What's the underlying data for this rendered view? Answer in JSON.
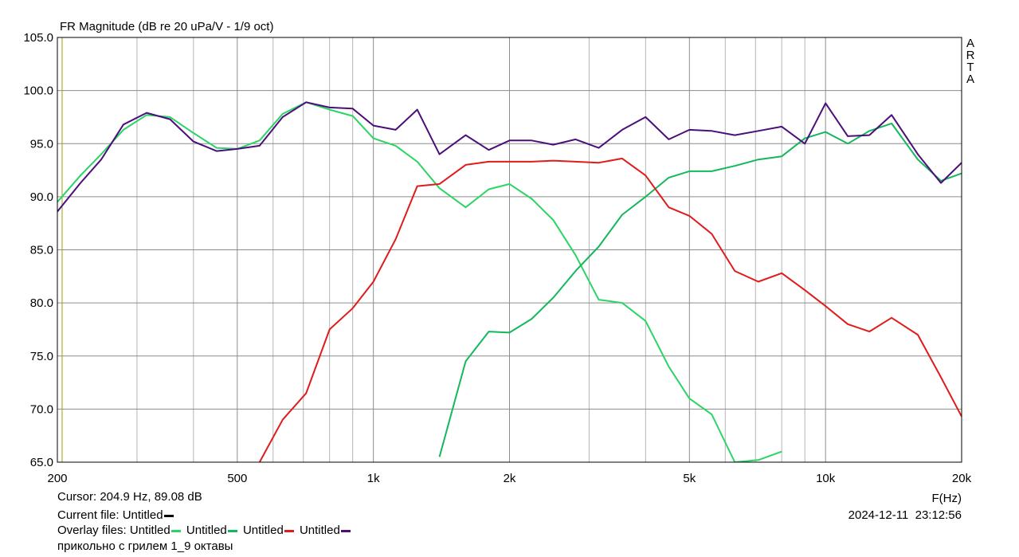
{
  "chart_data": {
    "type": "line",
    "title": "FR Magnitude (dB re 20 uPa/V - 1/9 oct)",
    "x_label": "F(Hz)",
    "brand": "ARTA",
    "log_x": true,
    "grid": true,
    "xlim": [
      200,
      20000
    ],
    "ylim": [
      65,
      105
    ],
    "xticks": [
      200,
      500,
      {
        "value": 1000,
        "label": "1k"
      },
      {
        "value": 2000,
        "label": "2k"
      },
      {
        "value": 5000,
        "label": "5k"
      },
      {
        "value": 10000,
        "label": "10k"
      },
      {
        "value": 20000,
        "label": "20k"
      }
    ],
    "xminor": [
      300,
      400,
      600,
      700,
      800,
      900,
      3000,
      4000,
      6000,
      7000,
      8000,
      9000
    ],
    "yticks": [
      {
        "value": 65,
        "label": "65.0"
      },
      {
        "value": 70,
        "label": "70.0"
      },
      {
        "value": 75,
        "label": "75.0"
      },
      {
        "value": 80,
        "label": "80.0"
      },
      {
        "value": 85,
        "label": "85.0"
      },
      {
        "value": 90,
        "label": "90.0"
      },
      {
        "value": 95,
        "label": "95.0"
      },
      {
        "value": 100,
        "label": "100.0"
      },
      {
        "value": 105,
        "label": "105.0"
      }
    ],
    "cursor": {
      "label": "Cursor: 204.9 Hz, 89.08 dB",
      "x": 204.9,
      "color": "#a0a000"
    },
    "current_file": {
      "label": "Current file:",
      "name": "Untitled",
      "color": "#000000"
    },
    "legend_title": "Overlay files:",
    "timestamp": "2024-12-11  23:12:56",
    "note": "прикольно с грилем 1_9 октавы",
    "x": [
      200,
      225,
      250,
      280,
      315,
      355,
      400,
      450,
      500,
      560,
      630,
      710,
      800,
      900,
      1000,
      1120,
      1250,
      1400,
      1600,
      1800,
      2000,
      2240,
      2500,
      2800,
      3150,
      3550,
      4000,
      4500,
      5000,
      5600,
      6300,
      7100,
      8000,
      9000,
      10000,
      11200,
      12500,
      14000,
      16000,
      18000,
      20000
    ],
    "series": [
      {
        "name": "Untitled",
        "color": "#2bd466",
        "values": [
          89.5,
          92,
          94,
          96.3,
          97.7,
          97.5,
          96,
          94.6,
          94.5,
          95.3,
          97.8,
          98.9,
          98.2,
          97.6,
          95.5,
          94.8,
          93.3,
          90.8,
          89,
          90.7,
          91.2,
          89.8,
          87.8,
          84.5,
          80.3,
          80,
          78.3,
          74,
          71,
          69.5,
          65,
          65.2,
          66,
          null,
          null,
          null,
          null,
          null,
          null,
          null,
          null
        ]
      },
      {
        "name": "Untitled",
        "color": "#14b85c",
        "values": [
          null,
          null,
          null,
          null,
          null,
          null,
          null,
          null,
          null,
          null,
          null,
          null,
          null,
          null,
          null,
          null,
          null,
          65.5,
          74.5,
          77.3,
          77.2,
          78.5,
          80.5,
          83,
          85.3,
          88.3,
          90,
          91.8,
          92.4,
          92.4,
          92.9,
          93.5,
          93.8,
          95.5,
          96.1,
          95,
          96.2,
          96.9,
          93.5,
          91.5,
          92.2
        ]
      },
      {
        "name": "Untitled",
        "color": "#e01b1b",
        "values": [
          null,
          null,
          null,
          null,
          null,
          null,
          null,
          null,
          null,
          65,
          69,
          71.5,
          77.5,
          79.5,
          82,
          86,
          91,
          91.2,
          93,
          93.3,
          93.3,
          93.3,
          93.4,
          93.3,
          93.2,
          93.6,
          92,
          89,
          88.2,
          86.5,
          83,
          82,
          82.8,
          81.2,
          79.7,
          78,
          77.3,
          78.6,
          77,
          73,
          69.3
        ]
      },
      {
        "name": "Untitled",
        "color": "#4b0f7a",
        "values": [
          88.6,
          91.3,
          93.5,
          96.8,
          97.9,
          97.3,
          95.2,
          94.3,
          94.5,
          94.8,
          97.5,
          98.9,
          98.4,
          98.3,
          96.7,
          96.3,
          98.2,
          94,
          95.8,
          94.4,
          95.3,
          95.3,
          94.9,
          95.4,
          94.6,
          96.3,
          97.5,
          95.4,
          96.3,
          96.2,
          95.8,
          96.2,
          96.6,
          95,
          98.8,
          95.7,
          95.8,
          97.7,
          94,
          91.3,
          93.2
        ]
      }
    ]
  }
}
